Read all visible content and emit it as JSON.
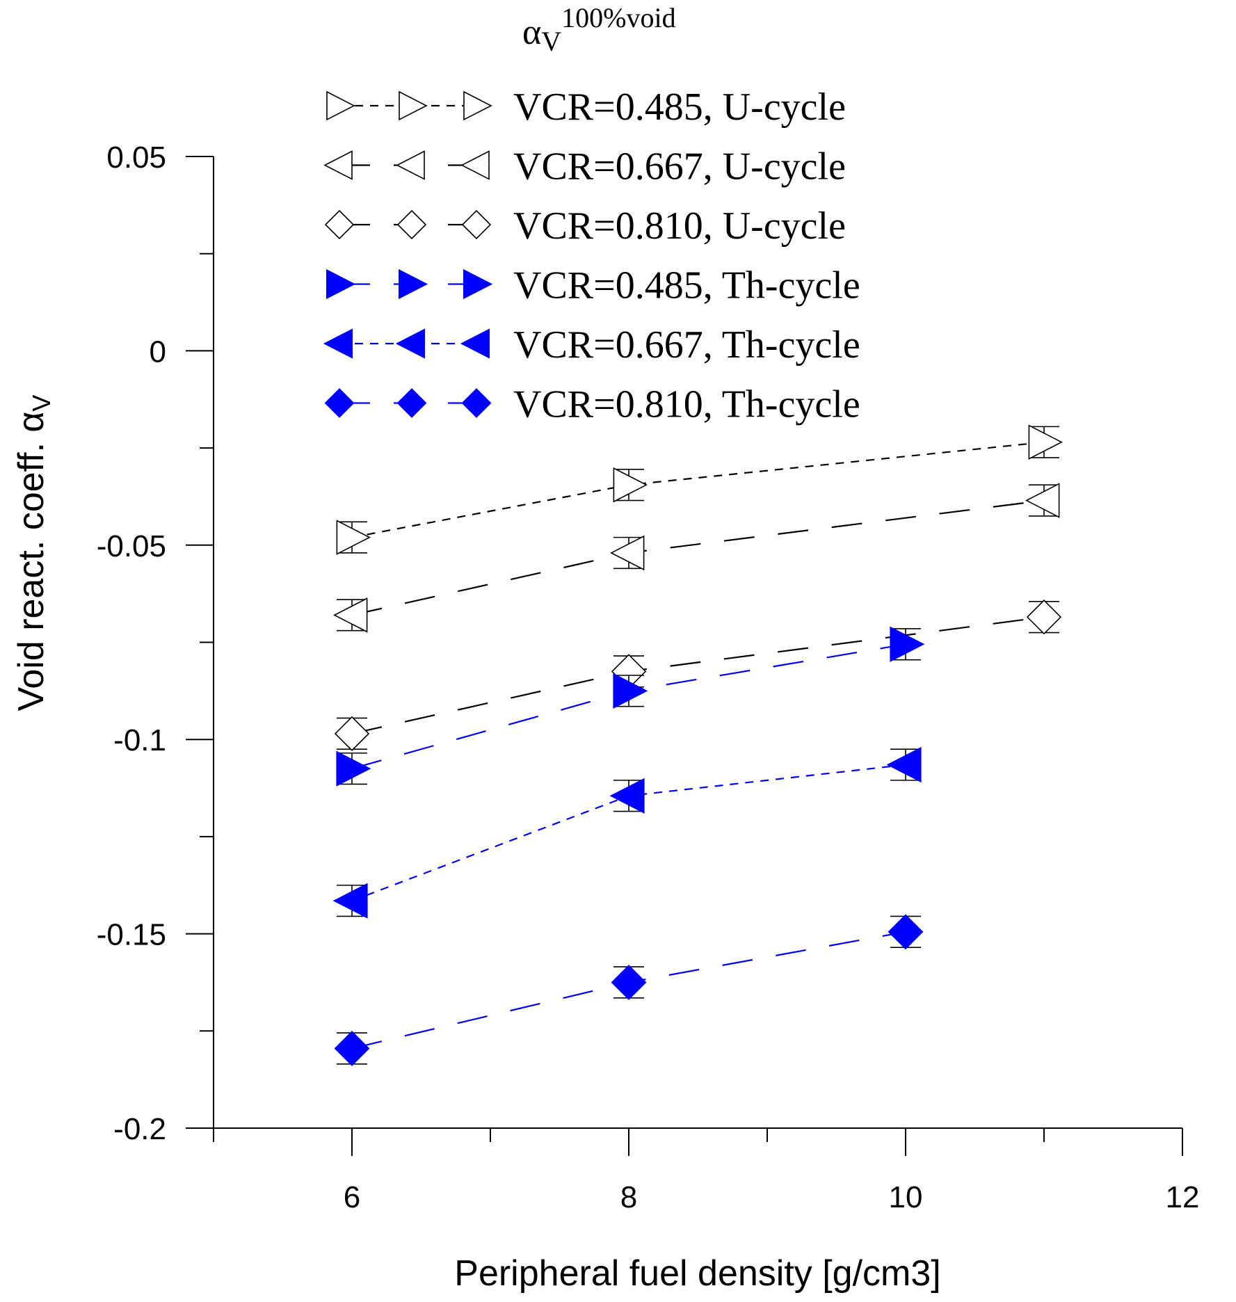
{
  "chart_data": {
    "type": "scatter",
    "title": "",
    "xlabel": "Peripheral fuel density [g/cm3]",
    "ylabel": "Void react. coeff. α",
    "ylabel_sub": "V",
    "xlim": [
      5,
      12
    ],
    "ylim": [
      -0.2,
      0.05
    ],
    "x_ticks": [
      6,
      8,
      10,
      12
    ],
    "y_ticks": [
      0.05,
      0,
      -0.05,
      -0.1,
      -0.15,
      -0.2
    ],
    "x_tick_labels": [
      "6",
      "8",
      "10",
      "12"
    ],
    "y_tick_labels": [
      "0.05",
      "0",
      "-0.05",
      "-0.1",
      "-0.15",
      "-0.2"
    ],
    "grid": false,
    "legend_position": "top",
    "legend_title": {
      "symbol": "α",
      "sub": "V",
      "sup": "100%void"
    },
    "series": [
      {
        "name": "VCR=0.485, U-cycle",
        "marker": "triangle-right",
        "filled": false,
        "color": "#000000",
        "dash": "short",
        "x": [
          6,
          8,
          11
        ],
        "y": [
          -0.048,
          -0.0345,
          -0.0235
        ],
        "err": [
          0.004,
          0.004,
          0.004
        ]
      },
      {
        "name": "VCR=0.667, U-cycle",
        "marker": "triangle-left",
        "filled": false,
        "color": "#000000",
        "dash": "long",
        "x": [
          6,
          8,
          11
        ],
        "y": [
          -0.068,
          -0.052,
          -0.0385
        ],
        "err": [
          0.004,
          0.004,
          0.004
        ]
      },
      {
        "name": "VCR=0.810, U-cycle",
        "marker": "diamond",
        "filled": false,
        "color": "#000000",
        "dash": "long",
        "x": [
          6,
          8,
          11
        ],
        "y": [
          -0.0985,
          -0.0825,
          -0.0685
        ],
        "err": [
          0.004,
          0.004,
          0.004
        ]
      },
      {
        "name": "VCR=0.485, Th-cycle",
        "marker": "triangle-right",
        "filled": true,
        "color": "#0000ff",
        "dash": "long",
        "x": [
          6,
          8,
          10
        ],
        "y": [
          -0.1075,
          -0.0875,
          -0.0755
        ],
        "err": [
          0.004,
          0.004,
          0.004
        ]
      },
      {
        "name": "VCR=0.667, Th-cycle",
        "marker": "triangle-left",
        "filled": true,
        "color": "#0000ff",
        "dash": "short",
        "x": [
          6,
          8,
          10
        ],
        "y": [
          -0.1415,
          -0.1145,
          -0.1065
        ],
        "err": [
          0.004,
          0.004,
          0.004
        ]
      },
      {
        "name": "VCR=0.810, Th-cycle",
        "marker": "diamond",
        "filled": true,
        "color": "#0000ff",
        "dash": "long",
        "x": [
          6,
          8,
          10
        ],
        "y": [
          -0.1795,
          -0.1625,
          -0.1495
        ],
        "err": [
          0.004,
          0.004,
          0.004
        ]
      }
    ]
  }
}
